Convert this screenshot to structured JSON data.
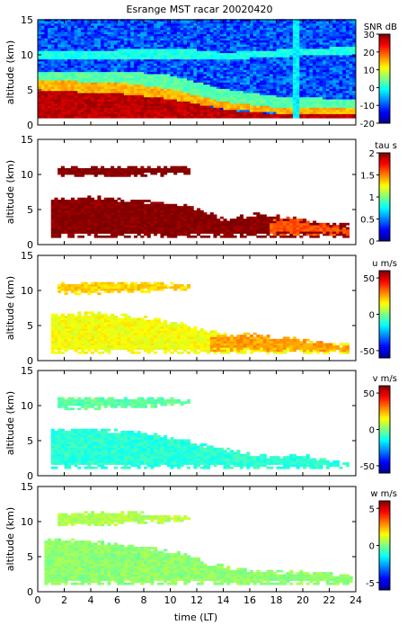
{
  "title": "Esrange MST racar 20020420",
  "xlabel": "time (LT)",
  "colors": {
    "jet": [
      "#00008f",
      "#0000ff",
      "#0080ff",
      "#00ffff",
      "#80ff80",
      "#ffff00",
      "#ff8000",
      "#ff0000",
      "#800000"
    ]
  },
  "chart_data": [
    {
      "type": "heatmap",
      "quantity": "SNR",
      "colorbar_label": "SNR dB",
      "ylabel": "altitude (km)",
      "xlim": [
        0,
        24
      ],
      "ylim": [
        0,
        15
      ],
      "clim": [
        -20,
        30
      ],
      "y_ticks": [
        "0",
        "5",
        "10",
        "15"
      ],
      "cbar_ticks": [
        {
          "value": 30,
          "label": "30"
        },
        {
          "value": 20,
          "label": "20"
        },
        {
          "value": 10,
          "label": "10"
        },
        {
          "value": 0,
          "label": "0"
        },
        {
          "value": -10,
          "label": "-10"
        },
        {
          "value": -20,
          "label": "-20"
        }
      ],
      "layers": [
        {
          "t": [
            0,
            6,
            10,
            12,
            14,
            16,
            18,
            24
          ],
          "alt_low": [
            1,
            1,
            1,
            1,
            1,
            1,
            1,
            1
          ],
          "alt_high": [
            4.8,
            4.4,
            3.6,
            2.9,
            2.1,
            1.7,
            1.5,
            1.5
          ],
          "value": 27
        },
        {
          "t": [
            0,
            6,
            10,
            14,
            18,
            24
          ],
          "alt_low": [
            4.8,
            4.4,
            3.6,
            2.2,
            1.6,
            1.5
          ],
          "alt_high": [
            6.2,
            6.0,
            5.0,
            3.2,
            2.4,
            2.4
          ],
          "value": 15
        },
        {
          "t": [
            0,
            6,
            10,
            14,
            18,
            24
          ],
          "alt_low": [
            6.2,
            6.0,
            5.0,
            3.2,
            2.4,
            2.4
          ],
          "alt_high": [
            7.5,
            7.6,
            7.0,
            5.0,
            4.0,
            3.5
          ],
          "value": 3
        },
        {
          "t": [
            0,
            6,
            11,
            14,
            20,
            24
          ],
          "alt_low": [
            9.2,
            9.3,
            9.4,
            9.2,
            9.8,
            10.0
          ],
          "alt_high": [
            10.6,
            10.6,
            10.8,
            10.2,
            10.8,
            11.0
          ],
          "value": 0
        },
        {
          "t": [
            19.3,
            19.8
          ],
          "alt_low": [
            1,
            1
          ],
          "alt_high": [
            15,
            15
          ],
          "value": -2
        }
      ],
      "background_value": -10
    },
    {
      "type": "heatmap",
      "quantity": "tau",
      "colorbar_label": "tau s",
      "ylabel": "altitude (km)",
      "xlim": [
        0,
        24
      ],
      "ylim": [
        0,
        15
      ],
      "clim": [
        0,
        2
      ],
      "y_ticks": [
        "0",
        "5",
        "10",
        "15"
      ],
      "cbar_ticks": [
        {
          "value": 2,
          "label": "2"
        },
        {
          "value": 1.5,
          "label": "1.5"
        },
        {
          "value": 1,
          "label": "1"
        },
        {
          "value": 0.5,
          "label": "0.5"
        },
        {
          "value": 0,
          "label": "0"
        }
      ],
      "layers": [
        {
          "t": [
            1.5,
            5,
            8,
            11,
            11.5
          ],
          "alt_low": [
            9.6,
            9.4,
            9.6,
            9.8,
            10.0
          ],
          "alt_high": [
            11.0,
            11.2,
            11.1,
            11.0,
            10.8
          ],
          "value": 2
        },
        {
          "t": [
            1,
            4,
            8,
            11,
            13,
            14,
            17,
            20,
            23.5
          ],
          "alt_low": [
            1,
            1,
            1,
            1,
            1,
            1,
            1,
            1,
            1
          ],
          "alt_high": [
            6.5,
            6.8,
            6.2,
            5.6,
            4.6,
            3.6,
            4.5,
            3.5,
            2.8
          ],
          "value": 2
        },
        {
          "t": [
            17.5,
            19,
            21,
            23.5
          ],
          "alt_low": [
            1.2,
            1.3,
            1.2,
            1.3
          ],
          "alt_high": [
            3.3,
            3.8,
            3.0,
            2.4
          ],
          "value": 1.6
        }
      ]
    },
    {
      "type": "heatmap",
      "quantity": "u",
      "colorbar_label": "u m/s",
      "ylabel": "altitude (km)",
      "xlim": [
        0,
        24
      ],
      "ylim": [
        0,
        15
      ],
      "clim": [
        -60,
        60
      ],
      "y_ticks": [
        "0",
        "5",
        "10",
        "15"
      ],
      "cbar_ticks": [
        {
          "value": 50,
          "label": "50"
        },
        {
          "value": 0,
          "label": "0"
        },
        {
          "value": -50,
          "label": "-50"
        }
      ],
      "layers": [
        {
          "t": [
            1.5,
            5,
            8,
            11.5
          ],
          "alt_low": [
            9.4,
            9.4,
            9.6,
            9.8
          ],
          "alt_high": [
            11.0,
            11.2,
            11.1,
            10.8
          ],
          "value": 20
        },
        {
          "t": [
            1,
            4,
            8,
            11,
            13,
            16,
            20,
            23.5
          ],
          "alt_low": [
            1,
            1,
            1,
            1,
            1,
            1,
            1,
            1
          ],
          "alt_high": [
            6.5,
            6.8,
            6.2,
            5.2,
            4.2,
            3.0,
            2.6,
            2.2
          ],
          "value": 14
        },
        {
          "t": [
            13,
            16,
            20,
            23.5
          ],
          "alt_low": [
            1.2,
            1.3,
            1.2,
            1.2
          ],
          "alt_high": [
            3.5,
            3.8,
            3.0,
            2.0
          ],
          "value": 26
        }
      ]
    },
    {
      "type": "heatmap",
      "quantity": "v",
      "colorbar_label": "v m/s",
      "ylabel": "altitude (km)",
      "xlim": [
        0,
        24
      ],
      "ylim": [
        0,
        15
      ],
      "clim": [
        -60,
        60
      ],
      "y_ticks": [
        "0",
        "5",
        "10",
        "15"
      ],
      "cbar_ticks": [
        {
          "value": 50,
          "label": "50"
        },
        {
          "value": 0,
          "label": "0"
        },
        {
          "value": -50,
          "label": "-50"
        }
      ],
      "layers": [
        {
          "t": [
            1.5,
            5,
            8,
            11.5
          ],
          "alt_low": [
            9.4,
            9.4,
            9.6,
            9.8
          ],
          "alt_high": [
            11.0,
            11.2,
            11.1,
            10.8
          ],
          "value": -4
        },
        {
          "t": [
            1,
            4,
            8,
            11,
            13,
            16,
            18,
            20,
            23.5
          ],
          "alt_low": [
            1,
            1,
            1,
            1,
            1,
            1,
            1,
            1,
            1
          ],
          "alt_high": [
            6.5,
            6.6,
            6.2,
            5.2,
            4.2,
            3.2,
            2.6,
            3.0,
            1.6
          ],
          "value": -10
        }
      ]
    },
    {
      "type": "heatmap",
      "quantity": "w",
      "colorbar_label": "w m/s",
      "ylabel": "altitude (km)",
      "xlim": [
        0,
        24
      ],
      "ylim": [
        0,
        15
      ],
      "clim": [
        -6,
        6
      ],
      "y_ticks": [
        "0",
        "5",
        "10",
        "15"
      ],
      "cbar_ticks": [
        {
          "value": 5,
          "label": "5"
        },
        {
          "value": 0,
          "label": "0"
        },
        {
          "value": -5,
          "label": "-5"
        }
      ],
      "layers": [
        {
          "t": [
            1.5,
            5,
            8,
            11.5
          ],
          "alt_low": [
            9.2,
            9.3,
            9.6,
            9.8
          ],
          "alt_high": [
            11.0,
            11.4,
            11.2,
            10.8
          ],
          "value": 0.6
        },
        {
          "t": [
            0.5,
            4,
            8,
            11,
            13,
            16,
            20,
            23.8
          ],
          "alt_low": [
            1,
            1,
            1,
            1,
            1,
            1,
            1,
            1
          ],
          "alt_high": [
            7.5,
            7.2,
            6.4,
            5.4,
            4.0,
            3.0,
            2.8,
            2.4
          ],
          "value": 0.2
        }
      ]
    }
  ],
  "x_ticks": [
    "0",
    "2",
    "4",
    "6",
    "8",
    "10",
    "12",
    "14",
    "16",
    "18",
    "20",
    "22",
    "24"
  ]
}
